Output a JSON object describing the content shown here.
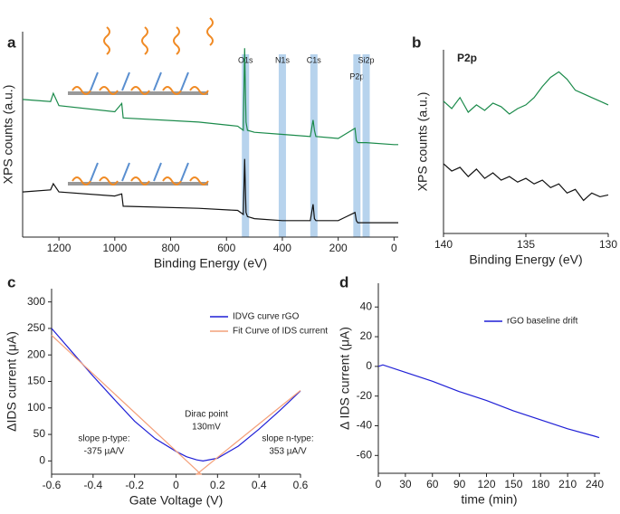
{
  "chart_data": [
    {
      "type": "line",
      "label": "a",
      "xlabel": "Binding Energy (eV)",
      "ylabel": "XPS counts (a.u.)",
      "xlim": [
        1330,
        -15
      ],
      "xticks": [
        1200,
        1000,
        800,
        600,
        400,
        200,
        0
      ],
      "ylim": [
        0,
        100
      ],
      "x": [
        1330,
        1230,
        1220,
        1200,
        1000,
        975,
        970,
        700,
        560,
        540,
        535,
        530,
        525,
        500,
        400,
        300,
        290,
        285,
        280,
        200,
        140,
        135,
        130,
        100,
        0,
        -15
      ],
      "series": [
        {
          "color": "#1a8a4a",
          "values": [
            67,
            66,
            70,
            64,
            61,
            65,
            58,
            56,
            54,
            52,
            92,
            56,
            52,
            51,
            50,
            49,
            57,
            52,
            49,
            48,
            53,
            47,
            46,
            46,
            45,
            45
          ]
        },
        {
          "color": "#111111",
          "values": [
            22,
            23,
            26,
            22,
            20,
            21,
            15,
            14,
            13,
            11,
            38,
            12,
            10,
            9,
            8,
            8,
            16,
            9,
            8,
            8,
            12,
            8,
            7,
            7,
            7,
            7
          ]
        }
      ],
      "bands": [
        {
          "text": "O1s",
          "x": 532
        },
        {
          "text": "N1s",
          "x": 400
        },
        {
          "text": "C1s",
          "x": 287
        },
        {
          "text": "P2p",
          "x": 133
        },
        {
          "text": "Si2p",
          "x": 100
        }
      ],
      "band_color": "#aacbea"
    },
    {
      "type": "line",
      "label": "b",
      "title": "P2p",
      "xlabel": "Binding Energy (eV)",
      "ylabel": "XPS counts (a.u.)",
      "xlim": [
        140,
        130
      ],
      "xticks": [
        140,
        135,
        130
      ],
      "ylim": [
        0,
        100
      ],
      "x": [
        140,
        139.5,
        139,
        138.5,
        138,
        137.5,
        137,
        136.5,
        136,
        135.5,
        135,
        134.5,
        134,
        133.5,
        133,
        132.5,
        132,
        131.5,
        131,
        130.5,
        130
      ],
      "series": [
        {
          "color": "#1a8a4a",
          "values": [
            72,
            68,
            74,
            66,
            70,
            67,
            71,
            69,
            65,
            68,
            70,
            74,
            80,
            85,
            88,
            84,
            78,
            76,
            74,
            72,
            70
          ]
        },
        {
          "color": "#111111",
          "values": [
            38,
            34,
            36,
            31,
            35,
            30,
            33,
            29,
            31,
            28,
            30,
            27,
            29,
            25,
            27,
            22,
            24,
            18,
            22,
            20,
            21
          ]
        }
      ]
    },
    {
      "type": "line",
      "label": "c",
      "xlabel": "Gate Voltage (V)",
      "ylabel": "ΔIDS current (μA)",
      "xlim": [
        -0.6,
        0.6
      ],
      "xticks": [
        -0.6,
        -0.4,
        -0.2,
        0.0,
        0.2,
        0.4,
        0.6
      ],
      "ylim": [
        -25,
        325
      ],
      "yticks": [
        0,
        50,
        100,
        150,
        200,
        250,
        300
      ],
      "series": [
        {
          "name": "IDVG curve rGO",
          "color": "#1f1fd6",
          "x": [
            -0.6,
            -0.5,
            -0.4,
            -0.3,
            -0.2,
            -0.1,
            0,
            0.05,
            0.1,
            0.13,
            0.2,
            0.3,
            0.4,
            0.5,
            0.6
          ],
          "values": [
            250,
            205,
            160,
            117,
            75,
            42,
            18,
            8,
            2,
            0,
            5,
            28,
            60,
            95,
            132
          ]
        },
        {
          "name": "Fit Curve of IDS current",
          "color": "#f4a07a",
          "x": [
            -0.6,
            0.12,
            0.1,
            0.6
          ],
          "values": [
            237,
            -25,
            -25,
            133
          ]
        }
      ],
      "annotations": [
        "slope p-type:",
        "-375 µA/V",
        "Dirac point",
        "130mV",
        "slope n-type:",
        "353 µA/V"
      ]
    },
    {
      "type": "line",
      "label": "d",
      "xlabel": "time (min)",
      "ylabel": "Δ IDS current (μA)",
      "xlim": [
        0,
        246
      ],
      "xticks": [
        0,
        30,
        60,
        90,
        120,
        150,
        180,
        210,
        240
      ],
      "ylim": [
        -72,
        56
      ],
      "yticks": [
        -60,
        -40,
        -20,
        0,
        20,
        40
      ],
      "series": [
        {
          "name": "rGO baseline drift",
          "color": "#1f1fd6",
          "x": [
            0,
            5,
            30,
            60,
            90,
            120,
            150,
            180,
            210,
            240,
            245
          ],
          "values": [
            0,
            1,
            -4,
            -10,
            -17,
            -23,
            -30,
            -36,
            -42,
            -47,
            -48
          ]
        }
      ]
    }
  ]
}
